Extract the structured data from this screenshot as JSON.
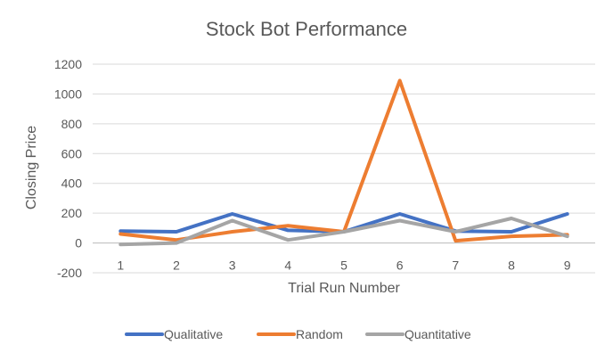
{
  "chart_data": {
    "type": "line",
    "title": "Stock Bot Performance",
    "xlabel": "Trial Run Number",
    "ylabel": "Closing Price",
    "x": [
      1,
      2,
      3,
      4,
      5,
      6,
      7,
      8,
      9
    ],
    "x_tick_labels": [
      "1",
      "2",
      "3",
      "4",
      "5",
      "6",
      "7",
      "8",
      "9"
    ],
    "ylim": [
      -200,
      1200
    ],
    "y_ticks": [
      -200,
      0,
      200,
      400,
      600,
      800,
      1000,
      1200
    ],
    "y_tick_labels": [
      "-200",
      "0",
      "200",
      "400",
      "600",
      "800",
      "1000",
      "1200"
    ],
    "grid": true,
    "legend_position": "bottom",
    "series": [
      {
        "name": "Qualitative",
        "color": "#4472C4",
        "values": [
          80,
          75,
          195,
          85,
          75,
          195,
          80,
          75,
          195
        ]
      },
      {
        "name": "Random",
        "color": "#ED7D31",
        "values": [
          60,
          20,
          75,
          115,
          75,
          1090,
          15,
          45,
          55
        ]
      },
      {
        "name": "Quantitative",
        "color": "#A5A5A5",
        "values": [
          -10,
          0,
          150,
          20,
          75,
          150,
          75,
          165,
          45
        ]
      }
    ]
  }
}
